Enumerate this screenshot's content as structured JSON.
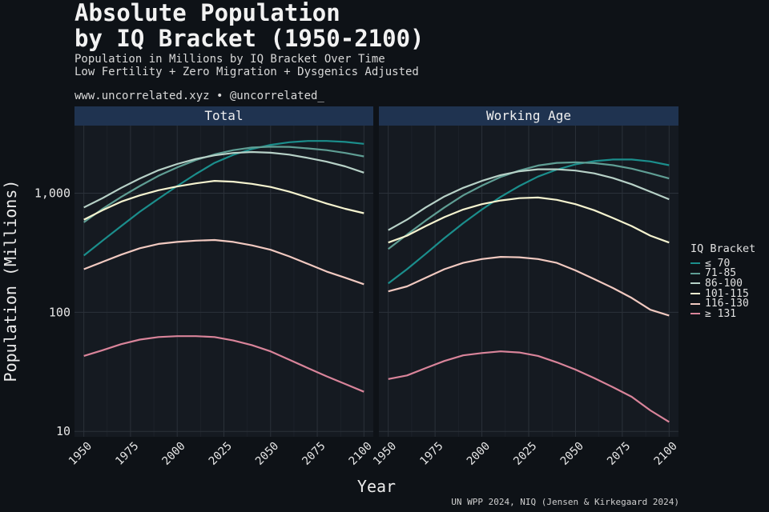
{
  "header": {
    "title": "Absolute Population\nby IQ Bracket (1950-2100)",
    "subtitle": "Population in Millions by IQ Bracket Over Time\nLow Fertility + Zero Migration + Dysgenics Adjusted",
    "handle": "www.uncorrelated.xyz • @uncorrelated_"
  },
  "caption": "UN WPP 2024, NIQ (Jensen & Kirkegaard 2024)",
  "legend": {
    "title": "IQ Bracket"
  },
  "colors": {
    "background": "#0e1217",
    "panel": "#151a21",
    "strip": "#1f3350",
    "grid": "#2b3139"
  },
  "chart_data": {
    "type": "line",
    "xlabel": "Year",
    "ylabel": "Population (Millions)",
    "yscale": "log10",
    "xlim": [
      1945,
      2105
    ],
    "ylim": [
      9,
      3700
    ],
    "xticks": [
      1950,
      1975,
      2000,
      2025,
      2050,
      2075,
      2100
    ],
    "yticks": [
      10,
      100,
      1000
    ],
    "yticklabels": [
      "10",
      "100",
      "1,000"
    ],
    "legend_position": "right",
    "x": [
      1950,
      1960,
      1970,
      1980,
      1990,
      2000,
      2010,
      2020,
      2030,
      2040,
      2050,
      2060,
      2070,
      2080,
      2090,
      2100
    ],
    "panels": [
      {
        "name": "Total",
        "series": [
          {
            "name": "≤ 70",
            "color": "#1b8e8c",
            "values": [
              300,
              400,
              530,
              700,
              900,
              1150,
              1450,
              1800,
              2100,
              2350,
              2550,
              2680,
              2750,
              2750,
              2700,
              2600
            ]
          },
          {
            "name": "71-85",
            "color": "#5f9e94",
            "values": [
              570,
              740,
              930,
              1150,
              1400,
              1650,
              1900,
              2120,
              2300,
              2420,
              2460,
              2450,
              2380,
              2300,
              2180,
              2040
            ]
          },
          {
            "name": "86-100",
            "color": "#b7d1c7",
            "values": [
              760,
              910,
              1110,
              1330,
              1560,
              1760,
              1940,
              2080,
              2180,
              2220,
              2190,
              2110,
              1980,
              1840,
              1680,
              1490
            ]
          },
          {
            "name": "101-115",
            "color": "#f5f3cf",
            "values": [
              600,
              720,
              850,
              960,
              1060,
              1140,
              1210,
              1270,
              1250,
              1200,
              1130,
              1030,
              920,
              820,
              740,
              680
            ]
          },
          {
            "name": "116-130",
            "color": "#f1c9c0",
            "values": [
              230,
              265,
              305,
              345,
              375,
              390,
              400,
              405,
              390,
              365,
              335,
              295,
              255,
              220,
              195,
              172
            ]
          },
          {
            "name": "≥ 131",
            "color": "#d9849a",
            "values": [
              43,
              48,
              54,
              59,
              62,
              63,
              63,
              62,
              58,
              53,
              47,
              40,
              34,
              29,
              25,
              21.5
            ]
          }
        ]
      },
      {
        "name": "Working Age",
        "series": [
          {
            "name": "≤ 70",
            "color": "#1b8e8c",
            "values": [
              175,
              230,
              310,
              420,
              560,
              730,
              930,
              1150,
              1380,
              1580,
              1750,
              1860,
              1920,
              1920,
              1850,
              1720
            ]
          },
          {
            "name": "71-85",
            "color": "#5f9e94",
            "values": [
              340,
              450,
              590,
              760,
              960,
              1160,
              1370,
              1550,
              1710,
              1800,
              1820,
              1790,
              1720,
              1610,
              1470,
              1330
            ]
          },
          {
            "name": "86-100",
            "color": "#b7d1c7",
            "values": [
              490,
              600,
              760,
              940,
              1110,
              1270,
              1420,
              1530,
              1590,
              1590,
              1550,
              1470,
              1340,
              1190,
              1030,
              890
            ]
          },
          {
            "name": "101-115",
            "color": "#f5f3cf",
            "values": [
              385,
              440,
              530,
              630,
              730,
              810,
              870,
              910,
              920,
              880,
              810,
              720,
              620,
              530,
              440,
              385
            ]
          },
          {
            "name": "116-130",
            "color": "#f1c9c0",
            "values": [
              150,
              165,
              195,
              230,
              260,
              280,
              292,
              290,
              280,
              260,
              225,
              190,
              160,
              132,
              105,
              94
            ]
          },
          {
            "name": "≥ 131",
            "color": "#d9849a",
            "values": [
              27.5,
              29.5,
              34,
              39,
              43.5,
              45.5,
              47,
              46,
              43,
              38,
              33,
              28,
              23.5,
              19.5,
              15,
              12
            ]
          }
        ]
      }
    ]
  }
}
